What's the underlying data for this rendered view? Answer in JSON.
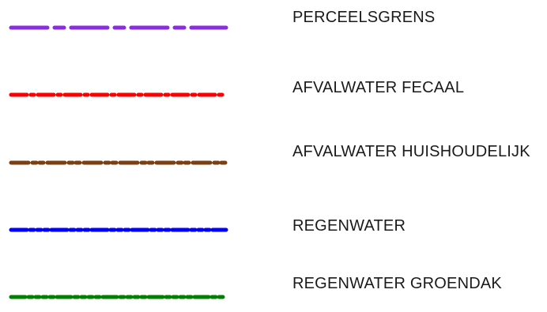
{
  "legend": {
    "items": [
      {
        "label": "PERCEELSGRENS",
        "color": "#8b2be2",
        "pattern": "long-short dash"
      },
      {
        "label": "AFVALWATER FECAAL",
        "color": "#ff0000",
        "pattern": "dash-dot"
      },
      {
        "label": "AFVALWATER HUISHOUDELIJK",
        "color": "#7b3f12",
        "pattern": "dash-dot-dot"
      },
      {
        "label": "REGENWATER",
        "color": "#0000ff",
        "pattern": "dash-dot-dot-dot"
      },
      {
        "label": "REGENWATER GROENDAK",
        "color": "#008000",
        "pattern": "dash-dot-dot-dot-dot"
      }
    ]
  }
}
